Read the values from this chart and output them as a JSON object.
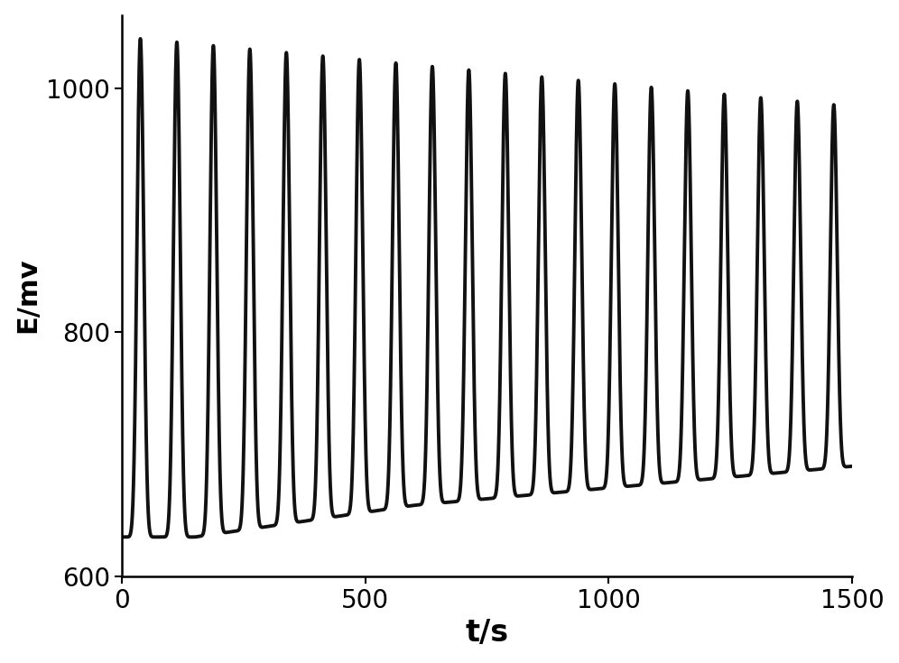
{
  "xlabel": "t/s",
  "ylabel": "E/mv",
  "xlim": [
    0,
    1500
  ],
  "ylim": [
    600,
    1060
  ],
  "yticks": [
    600,
    800,
    1000
  ],
  "xticks": [
    0,
    500,
    1000,
    1500
  ],
  "line_color": "#111111",
  "line_width": 2.8,
  "background_color": "#ffffff",
  "xlabel_fontsize": 24,
  "ylabel_fontsize": 22,
  "tick_fontsize": 20,
  "t_end": 1500,
  "initial_peak": 1042,
  "final_peak": 985,
  "initial_trough": 632,
  "mid_trough": 658,
  "final_trough": 690,
  "period": 75,
  "spike_sharpness": 12
}
